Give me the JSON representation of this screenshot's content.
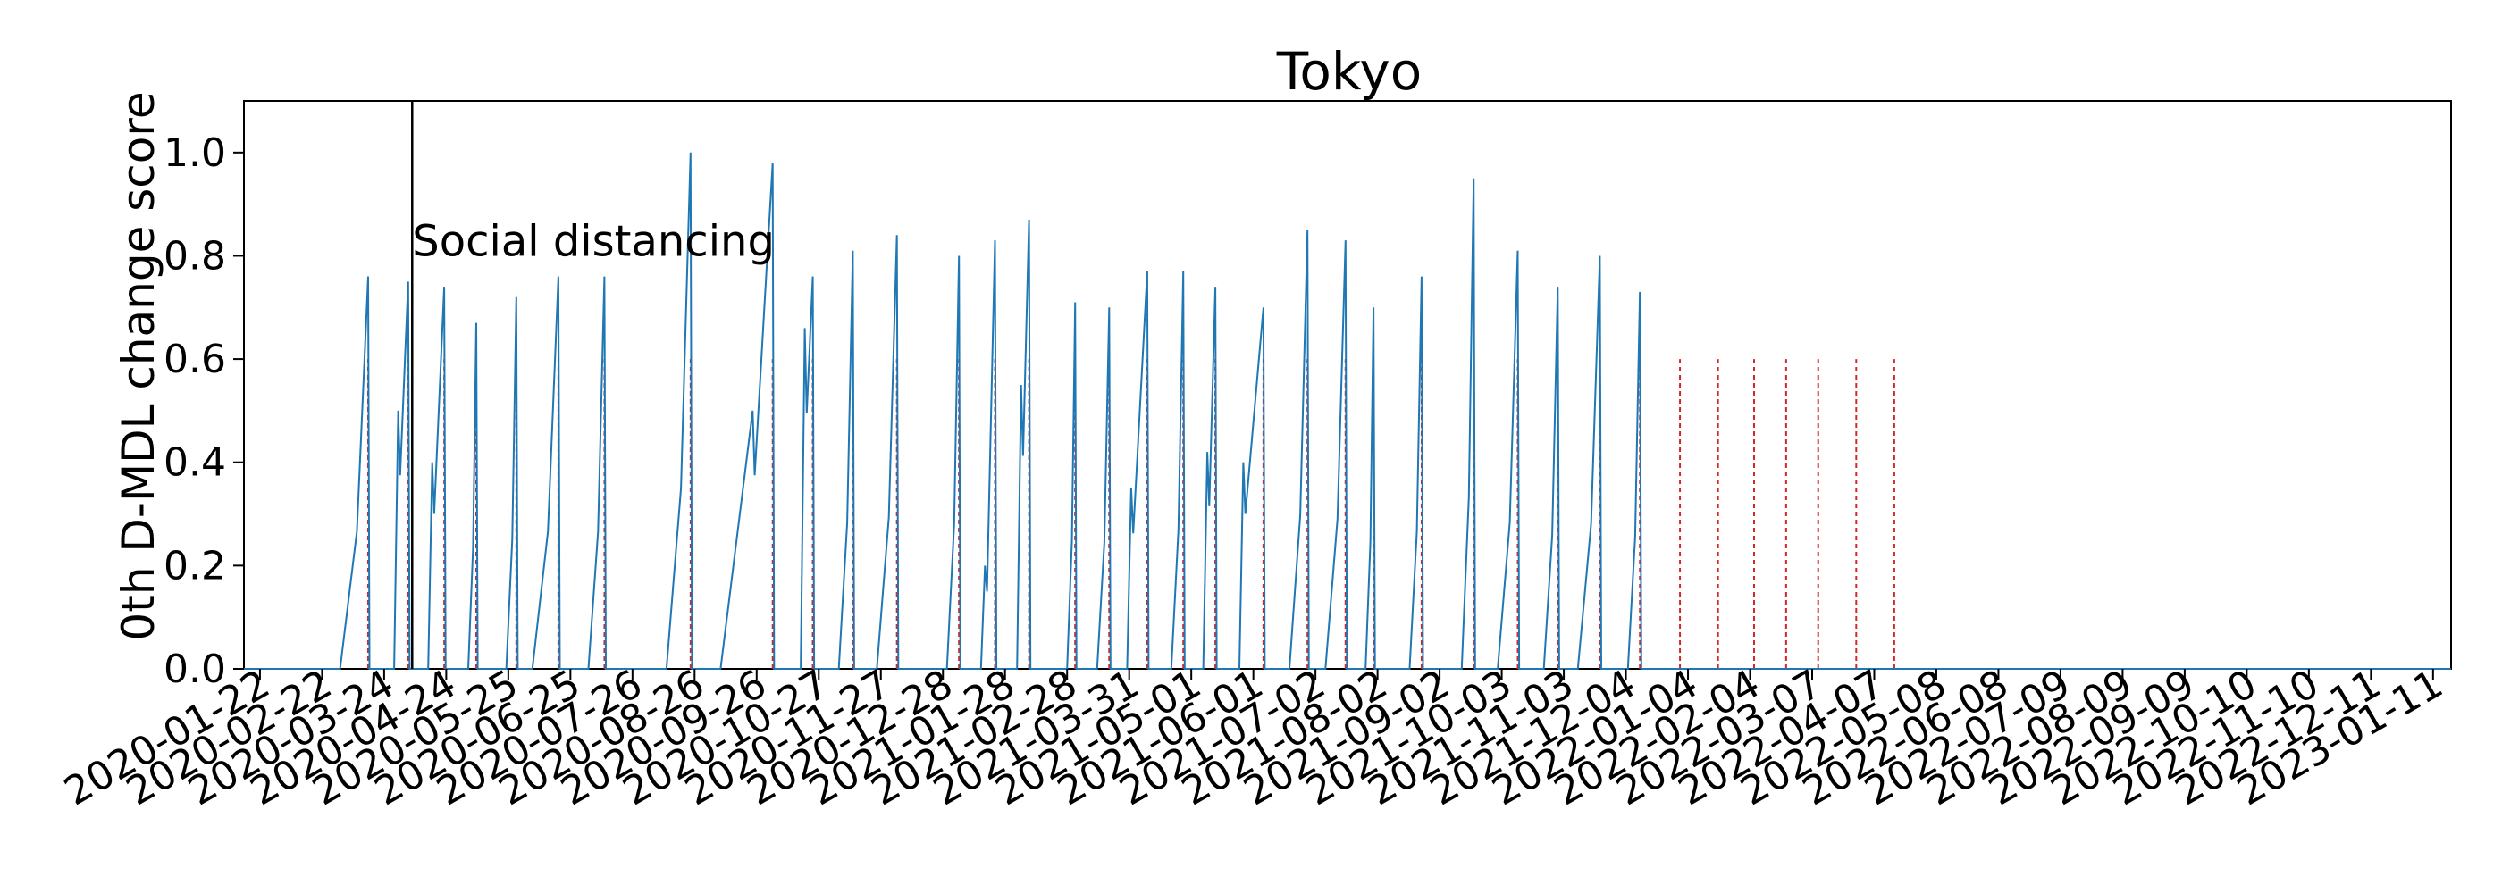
{
  "chart_data": {
    "type": "line",
    "title": "Tokyo",
    "xlabel": "",
    "ylabel": "0th D-MDL change score",
    "ylim": [
      0,
      1.1
    ],
    "xlim": [
      "2020-01-14",
      "2023-01-20"
    ],
    "y_ticks": [
      "0.0",
      "0.2",
      "0.4",
      "0.6",
      "0.8",
      "1.0"
    ],
    "y_tick_values": [
      0,
      0.2,
      0.4,
      0.6,
      0.8,
      1.0
    ],
    "x_ticks": [
      "2020-01-22",
      "2020-02-22",
      "2020-03-24",
      "2020-04-24",
      "2020-05-25",
      "2020-06-25",
      "2020-07-26",
      "2020-08-26",
      "2020-09-26",
      "2020-10-27",
      "2020-11-27",
      "2020-12-28",
      "2021-01-28",
      "2021-02-28",
      "2021-03-31",
      "2021-05-01",
      "2021-06-01",
      "2021-07-02",
      "2021-08-02",
      "2021-09-02",
      "2021-10-03",
      "2021-11-03",
      "2021-12-04",
      "2022-01-04",
      "2022-02-04",
      "2022-03-07",
      "2022-04-07",
      "2022-05-08",
      "2022-06-08",
      "2022-07-09",
      "2022-08-09",
      "2022-09-09",
      "2022-10-10",
      "2022-11-10",
      "2022-12-11",
      "2023-01-11"
    ],
    "grid": false,
    "annotation": {
      "label": "Social distancing",
      "date": "2020-04-07"
    },
    "series_color": "#1f77b4",
    "alarm_color": "#d62728",
    "alarm_dates": [
      "2020-03-16",
      "2020-04-05",
      "2020-04-23",
      "2020-05-09",
      "2020-05-29",
      "2020-06-19",
      "2020-07-12",
      "2020-08-24",
      "2020-10-04",
      "2020-10-24",
      "2020-11-13",
      "2020-12-05",
      "2021-01-05",
      "2021-01-23",
      "2021-02-09",
      "2021-03-04",
      "2021-03-21",
      "2021-04-09",
      "2021-04-27",
      "2021-05-13",
      "2021-06-06",
      "2021-06-28",
      "2021-07-17",
      "2021-07-31",
      "2021-08-24",
      "2021-09-19",
      "2021-10-11",
      "2021-10-31",
      "2021-11-21",
      "2021-12-11",
      "2021-12-31",
      "2022-01-19",
      "2022-02-06",
      "2022-02-22",
      "2022-03-10",
      "2022-03-29",
      "2022-04-17"
    ],
    "peaks": [
      {
        "start": "2020-03-02",
        "peak": "2020-03-16",
        "value": 0.76
      },
      {
        "start": "2020-03-29",
        "sub": "2020-03-31",
        "sub_value": 0.5,
        "peak": "2020-04-05",
        "value": 0.75
      },
      {
        "start": "2020-04-15",
        "sub": "2020-04-17",
        "sub_value": 0.4,
        "peak": "2020-04-23",
        "value": 0.74
      },
      {
        "start": "2020-05-05",
        "peak": "2020-05-09",
        "value": 0.67
      },
      {
        "start": "2020-05-24",
        "peak": "2020-05-29",
        "value": 0.72
      },
      {
        "start": "2020-06-06",
        "peak": "2020-06-19",
        "value": 0.76
      },
      {
        "start": "2020-07-04",
        "peak": "2020-07-12",
        "value": 0.76
      },
      {
        "start": "2020-08-12",
        "peak": "2020-08-24",
        "value": 1.0
      },
      {
        "start": "2020-09-08",
        "sub": "2020-09-24",
        "sub_value": 0.5,
        "peak": "2020-10-04",
        "value": 0.98
      },
      {
        "start": "2020-10-18",
        "sub": "2020-10-20",
        "sub_value": 0.66,
        "peak": "2020-10-24",
        "value": 0.76
      },
      {
        "start": "2020-11-06",
        "peak": "2020-11-13",
        "value": 0.81
      },
      {
        "start": "2020-11-25",
        "peak": "2020-12-05",
        "value": 0.84
      },
      {
        "start": "2020-12-30",
        "peak": "2021-01-05",
        "value": 0.8
      },
      {
        "start": "2021-01-16",
        "sub": "2021-01-18",
        "sub_value": 0.2,
        "peak": "2021-01-23",
        "value": 0.83
      },
      {
        "start": "2021-02-03",
        "sub": "2021-02-05",
        "sub_value": 0.55,
        "peak": "2021-02-09",
        "value": 0.87
      },
      {
        "start": "2021-02-28",
        "peak": "2021-03-04",
        "value": 0.71
      },
      {
        "start": "2021-03-15",
        "peak": "2021-03-21",
        "value": 0.7
      },
      {
        "start": "2021-03-30",
        "sub": "2021-04-01",
        "sub_value": 0.35,
        "peak": "2021-04-09",
        "value": 0.77
      },
      {
        "start": "2021-04-21",
        "peak": "2021-04-27",
        "value": 0.77
      },
      {
        "start": "2021-05-07",
        "sub": "2021-05-09",
        "sub_value": 0.42,
        "peak": "2021-05-13",
        "value": 0.74
      },
      {
        "start": "2021-05-25",
        "sub": "2021-05-27",
        "sub_value": 0.4,
        "peak": "2021-06-06",
        "value": 0.7
      },
      {
        "start": "2021-06-19",
        "peak": "2021-06-28",
        "value": 0.85
      },
      {
        "start": "2021-07-07",
        "peak": "2021-07-17",
        "value": 0.83
      },
      {
        "start": "2021-07-27",
        "peak": "2021-07-31",
        "value": 0.7
      },
      {
        "start": "2021-08-18",
        "peak": "2021-08-24",
        "value": 0.76
      },
      {
        "start": "2021-09-13",
        "peak": "2021-09-19",
        "value": 0.95
      },
      {
        "start": "2021-10-01",
        "peak": "2021-10-11",
        "value": 0.81
      },
      {
        "start": "2021-10-24",
        "peak": "2021-10-31",
        "value": 0.74
      },
      {
        "start": "2021-11-10",
        "peak": "2021-11-21",
        "value": 0.8
      },
      {
        "start": "2021-12-05",
        "peak": "2021-12-11",
        "value": 0.73
      }
    ]
  }
}
